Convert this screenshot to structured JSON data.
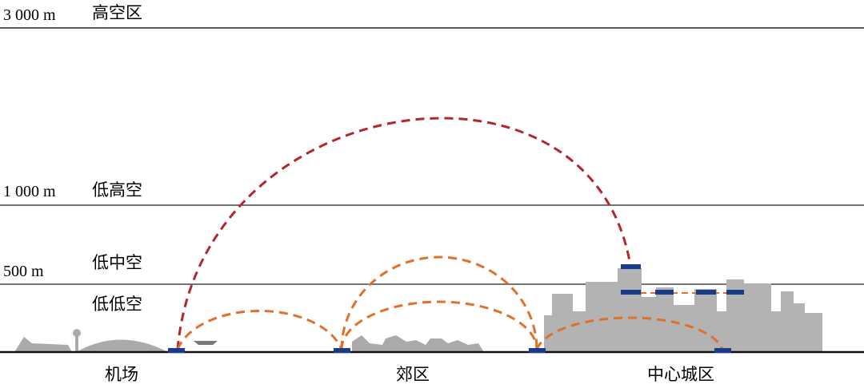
{
  "altitudes": [
    {
      "height": "3 000  m",
      "zone": "高空区"
    },
    {
      "height": "1 000  m",
      "zone": "低高空"
    },
    {
      "height": "500  m",
      "zone": "低中空"
    },
    {
      "zone": "低低空"
    }
  ],
  "areas": [
    "机场",
    "郊区",
    "中心城区"
  ]
}
